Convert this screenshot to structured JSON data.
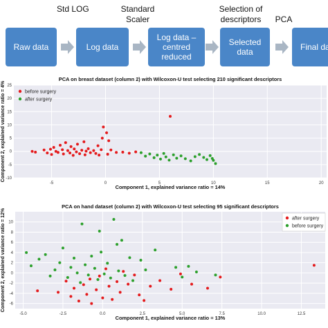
{
  "pipeline": {
    "step_labels": [
      "Std LOG",
      "Standard Scaler",
      "Selection of descriptors",
      "PCA"
    ],
    "boxes": [
      "Raw data",
      "Log data",
      "Log data – centred reduced",
      "Selected data",
      "Final data"
    ]
  },
  "colors": {
    "before": "#e41a1c",
    "after": "#2ca02c",
    "plot_bg": "#eaeaf2",
    "grid": "#ffffff",
    "box": "#4a86c8",
    "arrow": "#a9b6c4"
  },
  "chart_data": [
    {
      "type": "scatter",
      "title": "PCA on breast dataset (column 2) with Wilcoxon-U test selecting 210 significant descriptors",
      "xlabel": "Component 1, explained variance ratio = 14%",
      "ylabel": "Component 2, explained variance ratio = 4%",
      "xlim": [
        -8.5,
        20.5
      ],
      "ylim": [
        -10,
        25
      ],
      "xticks": [
        -5,
        0,
        5,
        10,
        15,
        20
      ],
      "yticks": [
        -10,
        -5,
        0,
        5,
        10,
        15,
        20,
        25
      ],
      "xtick_labels": [
        "-5",
        "0",
        "5",
        "10",
        "15",
        "20"
      ],
      "ytick_labels": [
        "-10",
        "-5",
        "0",
        "5",
        "10",
        "15",
        "20",
        "25"
      ],
      "grid": true,
      "legend": "top-left",
      "series": [
        {
          "name": "before surgery",
          "color": "#e41a1c",
          "points": [
            [
              -6.8,
              0
            ],
            [
              -6.5,
              -0.3
            ],
            [
              -5.7,
              0.5
            ],
            [
              -5.4,
              -0.6
            ],
            [
              -5.1,
              0.8
            ],
            [
              -5.0,
              -1.2
            ],
            [
              -4.8,
              1.5
            ],
            [
              -4.6,
              0
            ],
            [
              -4.4,
              -0.4
            ],
            [
              -4.2,
              2.3
            ],
            [
              -4.0,
              0.6
            ],
            [
              -3.9,
              -1.0
            ],
            [
              -3.7,
              3.3
            ],
            [
              -3.5,
              0.3
            ],
            [
              -3.3,
              -0.6
            ],
            [
              -3.2,
              1.8
            ],
            [
              -3.0,
              -1.5
            ],
            [
              -2.9,
              0.9
            ],
            [
              -2.7,
              -0.2
            ],
            [
              -2.6,
              2.7
            ],
            [
              -2.4,
              -0.9
            ],
            [
              -2.2,
              0.4
            ],
            [
              -2.0,
              3.6
            ],
            [
              -1.9,
              -1.3
            ],
            [
              -1.8,
              0.1
            ],
            [
              -1.6,
              1.0
            ],
            [
              -1.4,
              -0.5
            ],
            [
              -1.1,
              0.3
            ],
            [
              -0.9,
              -0.8
            ],
            [
              -0.7,
              2.1
            ],
            [
              -0.6,
              -1.4
            ],
            [
              -0.4,
              0.6
            ],
            [
              -0.3,
              5.0
            ],
            [
              -0.2,
              9.2
            ],
            [
              0.1,
              7.0
            ],
            [
              0.3,
              4.0
            ],
            [
              0.2,
              -1.1
            ],
            [
              0.5,
              0.5
            ],
            [
              1.0,
              -0.4
            ],
            [
              1.6,
              -0.3
            ],
            [
              2.2,
              -0.7
            ],
            [
              2.8,
              -0.2
            ],
            [
              6.0,
              13.2
            ]
          ]
        },
        {
          "name": "after surgery",
          "color": "#2ca02c",
          "points": [
            [
              3.3,
              -0.5
            ],
            [
              3.7,
              -1.8
            ],
            [
              4.1,
              -1.0
            ],
            [
              4.5,
              -2.4
            ],
            [
              4.8,
              -1.4
            ],
            [
              5.1,
              -2.9
            ],
            [
              5.4,
              -0.8
            ],
            [
              5.6,
              -2.1
            ],
            [
              5.9,
              -3.3
            ],
            [
              6.3,
              -1.3
            ],
            [
              6.6,
              -2.6
            ],
            [
              7.0,
              -1.7
            ],
            [
              7.4,
              -2.8
            ],
            [
              7.9,
              -3.6
            ],
            [
              8.3,
              -2.0
            ],
            [
              8.7,
              -1.2
            ],
            [
              9.1,
              -2.3
            ],
            [
              9.4,
              -3.1
            ],
            [
              9.7,
              -1.6
            ],
            [
              10.0,
              -3.4
            ],
            [
              10.2,
              -4.6
            ],
            [
              9.9,
              -2.7
            ]
          ]
        }
      ]
    },
    {
      "type": "scatter",
      "title": "PCA on hand dataset (column 2) with Wilcoxon-U test selecting 95 significant descriptors",
      "xlabel": "Component 1, explained variance ratio = 13%",
      "ylabel": "Component 2, explained variance ratio = 12%",
      "xlim": [
        -5.5,
        14.0
      ],
      "ylim": [
        -7,
        12
      ],
      "xticks": [
        -5,
        -2.5,
        0,
        2.5,
        5,
        7.5,
        10,
        12.5
      ],
      "yticks": [
        -6,
        -4,
        -2,
        0,
        2,
        4,
        6,
        8,
        10
      ],
      "xtick_labels": [
        "-5.0",
        "-2.5",
        "0.0",
        "2.5",
        "5.0",
        "7.5",
        "10.0",
        "12.5"
      ],
      "ytick_labels": [
        "-6",
        "-4",
        "-2",
        "0",
        "2",
        "4",
        "6",
        "8",
        "10"
      ],
      "grid": true,
      "legend": "top-right",
      "series": [
        {
          "name": "after surgery",
          "color": "#e41a1c",
          "points": [
            [
              -4.1,
              -3.5
            ],
            [
              -2.8,
              -3.8
            ],
            [
              -2.3,
              -1.6
            ],
            [
              -2.0,
              -4.6
            ],
            [
              -1.8,
              -3.0
            ],
            [
              -1.5,
              -5.5
            ],
            [
              -1.2,
              -2.3
            ],
            [
              -1.0,
              -4.2
            ],
            [
              -0.8,
              -1.2
            ],
            [
              -0.7,
              -6.0
            ],
            [
              -0.4,
              -3.3
            ],
            [
              -0.2,
              -0.6
            ],
            [
              0.0,
              -4.9
            ],
            [
              0.2,
              0.8
            ],
            [
              0.4,
              -2.6
            ],
            [
              0.6,
              -5.2
            ],
            [
              0.9,
              -1.7
            ],
            [
              1.1,
              -3.8
            ],
            [
              1.3,
              0.3
            ],
            [
              1.6,
              -2.2
            ],
            [
              2.0,
              -0.4
            ],
            [
              2.3,
              -4.3
            ],
            [
              2.6,
              -5.4
            ],
            [
              3.0,
              -2.6
            ],
            [
              3.6,
              -1.5
            ],
            [
              4.3,
              -3.2
            ],
            [
              4.9,
              -0.2
            ],
            [
              5.6,
              -2.2
            ],
            [
              6.6,
              -3.0
            ],
            [
              7.4,
              -0.8
            ],
            [
              13.3,
              1.5
            ]
          ]
        },
        {
          "name": "before surgery",
          "color": "#2ca02c",
          "points": [
            [
              -4.8,
              4.0
            ],
            [
              -4.5,
              1.4
            ],
            [
              -4.0,
              2.7
            ],
            [
              -3.6,
              3.6
            ],
            [
              -3.3,
              -0.6
            ],
            [
              -3.0,
              0.6
            ],
            [
              -2.7,
              2.0
            ],
            [
              -2.5,
              4.9
            ],
            [
              -2.2,
              -0.9
            ],
            [
              -2.0,
              1.1
            ],
            [
              -1.8,
              2.9
            ],
            [
              -1.6,
              0.0
            ],
            [
              -1.4,
              -1.9
            ],
            [
              -1.3,
              9.6
            ],
            [
              -1.1,
              1.6
            ],
            [
              -0.9,
              -0.4
            ],
            [
              -0.7,
              3.3
            ],
            [
              -0.5,
              0.9
            ],
            [
              -0.3,
              -1.3
            ],
            [
              -0.2,
              8.2
            ],
            [
              -0.1,
              4.1
            ],
            [
              0.1,
              -0.2
            ],
            [
              0.3,
              1.9
            ],
            [
              0.5,
              -1.0
            ],
            [
              0.7,
              10.5
            ],
            [
              0.9,
              5.6
            ],
            [
              1.0,
              0.4
            ],
            [
              1.2,
              6.4
            ],
            [
              1.4,
              -0.5
            ],
            [
              1.7,
              3.0
            ],
            [
              1.9,
              -1.5
            ],
            [
              2.4,
              2.5
            ],
            [
              2.7,
              0.6
            ],
            [
              3.3,
              4.5
            ],
            [
              4.6,
              1.1
            ],
            [
              5.0,
              -0.8
            ],
            [
              5.4,
              1.3
            ],
            [
              5.9,
              0.2
            ],
            [
              7.1,
              -0.4
            ]
          ]
        }
      ]
    }
  ]
}
